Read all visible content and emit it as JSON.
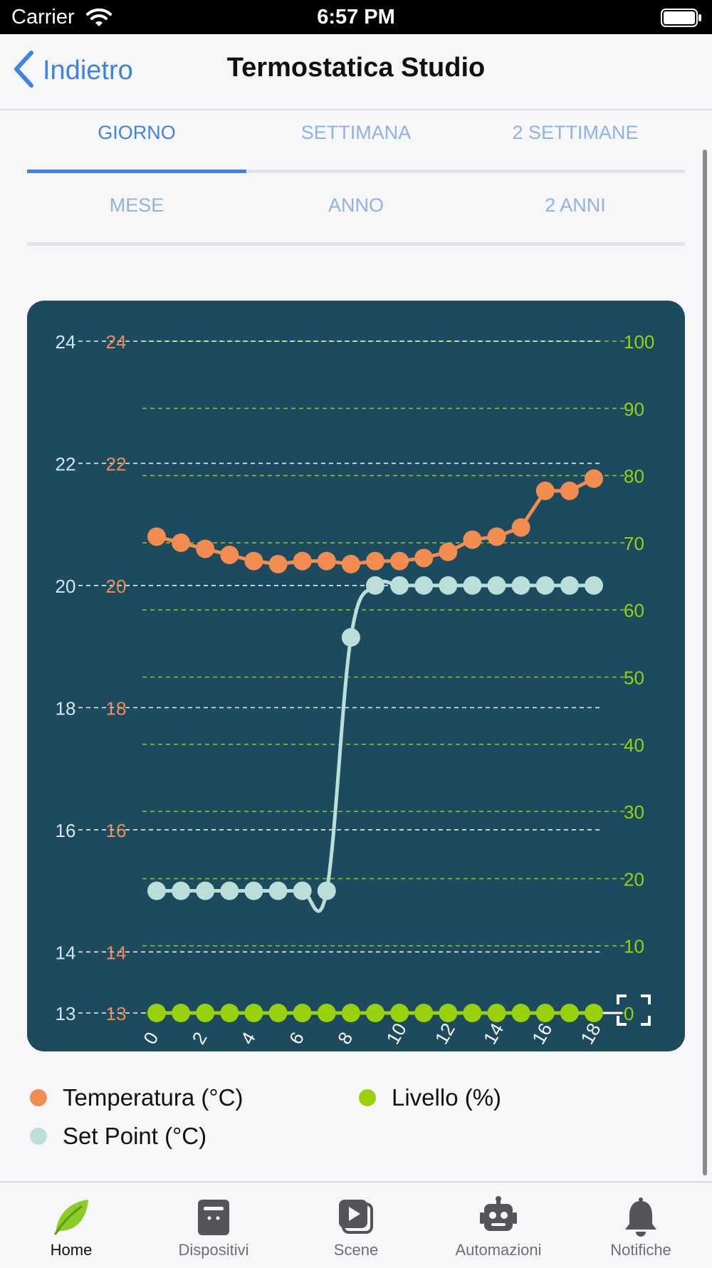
{
  "status_bar": {
    "carrier": "Carrier",
    "time": "6:57 PM"
  },
  "nav": {
    "back_label": "Indietro",
    "title": "Termostatica Studio"
  },
  "period_tabs": {
    "row1": [
      "GIORNO",
      "SETTIMANA",
      "2 SETTIMANE"
    ],
    "row2": [
      "MESE",
      "ANNO",
      "2 ANNI"
    ],
    "active": "GIORNO"
  },
  "colors": {
    "temperature": "#f28c50",
    "set_point": "#bcded8",
    "level": "#99d10d",
    "card_background": "#1c4a5e",
    "accent": "#3f82e8"
  },
  "chart_data": {
    "type": "line",
    "x": [
      0,
      1,
      2,
      3,
      4,
      5,
      6,
      7,
      8,
      9,
      10,
      11,
      12,
      13,
      14,
      15,
      16,
      17,
      18
    ],
    "x_tick_labels": [
      "0",
      "2",
      "4",
      "6",
      "8",
      "10",
      "12",
      "14",
      "16",
      "18"
    ],
    "left_axis_ticks": [
      "24",
      "22",
      "20",
      "18",
      "16",
      "14",
      "13"
    ],
    "right_axis_ticks": [
      "100",
      "90",
      "80",
      "70",
      "60",
      "50",
      "40",
      "30",
      "20",
      "10",
      "0"
    ],
    "ylim_left": [
      13,
      24
    ],
    "ylim_right": [
      0,
      100
    ],
    "grid": true,
    "legend_placement": "bottom",
    "series": [
      {
        "name": "Temperatura (°C)",
        "axis": "left",
        "color": "#f28c50",
        "values": [
          20.8,
          20.7,
          20.6,
          20.5,
          20.4,
          20.35,
          20.4,
          20.4,
          20.35,
          20.4,
          20.4,
          20.45,
          20.55,
          20.75,
          20.8,
          20.95,
          21.55,
          21.55,
          21.75
        ]
      },
      {
        "name": "Set Point (°C)",
        "axis": "left",
        "color": "#bcded8",
        "values": [
          15,
          15,
          15,
          15,
          15,
          15,
          15,
          15,
          19.15,
          20,
          20,
          20,
          20,
          20,
          20,
          20,
          20,
          20,
          20
        ]
      },
      {
        "name": "Livello (%)",
        "axis": "right",
        "color": "#99d10d",
        "values": [
          0,
          0,
          0,
          0,
          0,
          0,
          0,
          0,
          0,
          0,
          0,
          0,
          0,
          0,
          0,
          0,
          0,
          0,
          0
        ]
      }
    ]
  },
  "legend": [
    {
      "label": "Temperatura (°C)",
      "color": "#f28c50"
    },
    {
      "label": "Livello (%)",
      "color": "#99d10d"
    },
    {
      "label": "Set Point (°C)",
      "color": "#bcded8"
    }
  ],
  "tab_bar": {
    "items": [
      {
        "label": "Home",
        "icon": "leaf-icon"
      },
      {
        "label": "Dispositivi",
        "icon": "device-icon"
      },
      {
        "label": "Scene",
        "icon": "scene-play-icon"
      },
      {
        "label": "Automazioni",
        "icon": "robot-icon"
      },
      {
        "label": "Notifiche",
        "icon": "bell-icon"
      }
    ],
    "active": "Home"
  }
}
